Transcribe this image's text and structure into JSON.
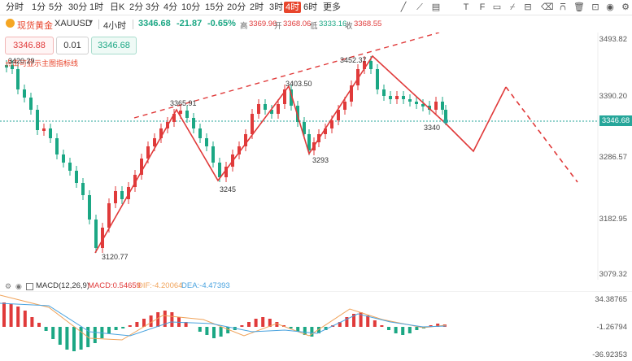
{
  "timeframes": [
    "分时",
    "1分",
    "5分",
    "30分",
    "1时",
    "日K",
    "2分",
    "3分",
    "4分",
    "10分",
    "15分",
    "20分",
    "2时",
    "3时",
    "4时",
    "6时",
    "更多"
  ],
  "active_timeframe": "4时",
  "symbol": {
    "name": "现货黄金",
    "code": "XAUUSD",
    "interval": "4小时",
    "last": "3346.68",
    "change": "-21.87",
    "change_pct": "-0.65%",
    "high_label": "高",
    "high": "3369.96",
    "open_label": "开",
    "open": "3368.06",
    "low_label": "低",
    "low": "3333.16",
    "close_label": "收",
    "close": "3368.55"
  },
  "order": {
    "sell_price": "3346.88",
    "qty": "0.01",
    "buy_price": "3346.68"
  },
  "hint_text": "点击可显示主图指标线",
  "price_axis": [
    "3493.82",
    "3390.20",
    "3286.57",
    "3182.95",
    "3079.32"
  ],
  "current_price_tag": "3346.68",
  "annotations": [
    "3420.29",
    "3365.91",
    "3403.50",
    "3452.37",
    "3340",
    "3293",
    "3245",
    "3120.77"
  ],
  "macd": {
    "label": "MACD(12,26,9)",
    "macd_text": "MACD:0.54659",
    "dif_text": "DIF:-4.20064",
    "dea_text": "DEA:-4.47393",
    "axis": [
      "34.38765",
      "-1.26794",
      "-36.92353"
    ]
  },
  "colors": {
    "up": "#e03a3a",
    "down": "#1ba784",
    "accent": "#e8452c",
    "dif": "#f0a35a",
    "dea": "#4aa3df",
    "price_tag": "#26a69a"
  },
  "icons": [
    "line-tool-icon",
    "ray-tool-icon",
    "channel-tool-icon",
    "text-tool-icon",
    "fib-tool-icon",
    "rect-tool-icon",
    "measure-tool-icon",
    "eraser-icon",
    "magnet-icon",
    "delete-icon",
    "eye-icon",
    "settings-icon"
  ]
}
